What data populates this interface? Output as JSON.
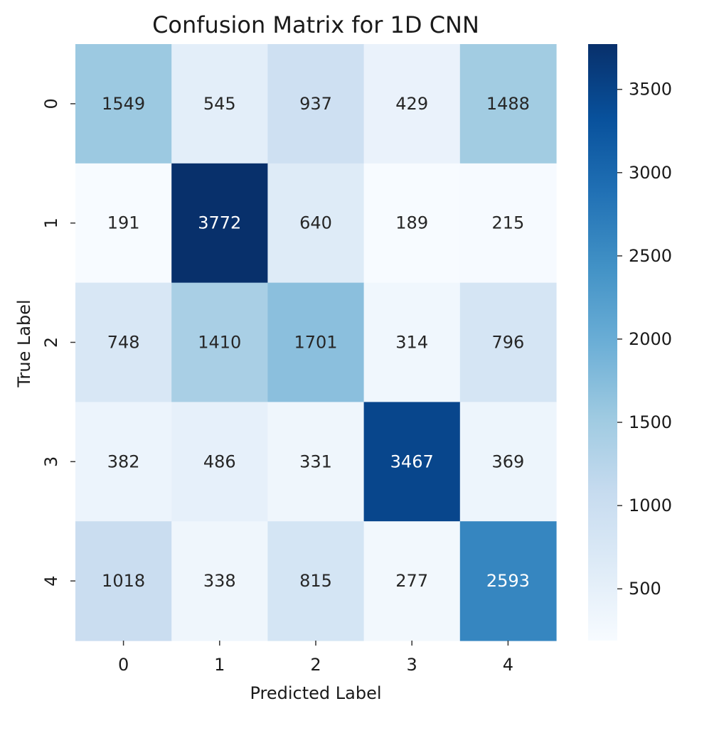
{
  "chart_data": {
    "type": "heatmap",
    "title": "Confusion Matrix for 1D CNN",
    "xlabel": "Predicted Label",
    "ylabel": "True Label",
    "x_categories": [
      "0",
      "1",
      "2",
      "3",
      "4"
    ],
    "y_categories": [
      "0",
      "1",
      "2",
      "3",
      "4"
    ],
    "values": [
      [
        1549,
        545,
        937,
        429,
        1488
      ],
      [
        191,
        3772,
        640,
        189,
        215
      ],
      [
        748,
        1410,
        1701,
        314,
        796
      ],
      [
        382,
        486,
        331,
        3467,
        369
      ],
      [
        1018,
        338,
        815,
        277,
        2593
      ]
    ],
    "colormap": "Blues",
    "colormap_stops": [
      "#f7fbff",
      "#deebf7",
      "#c6dbef",
      "#9ecae1",
      "#6baed6",
      "#4292c6",
      "#2171b5",
      "#08519c",
      "#08306b"
    ],
    "colorbar": {
      "range": [
        189,
        3772
      ],
      "ticks": [
        "500",
        "1000",
        "1500",
        "2000",
        "2500",
        "3000",
        "3500"
      ]
    },
    "text_color_dark": "#262626",
    "text_color_light": "#ffffff"
  }
}
